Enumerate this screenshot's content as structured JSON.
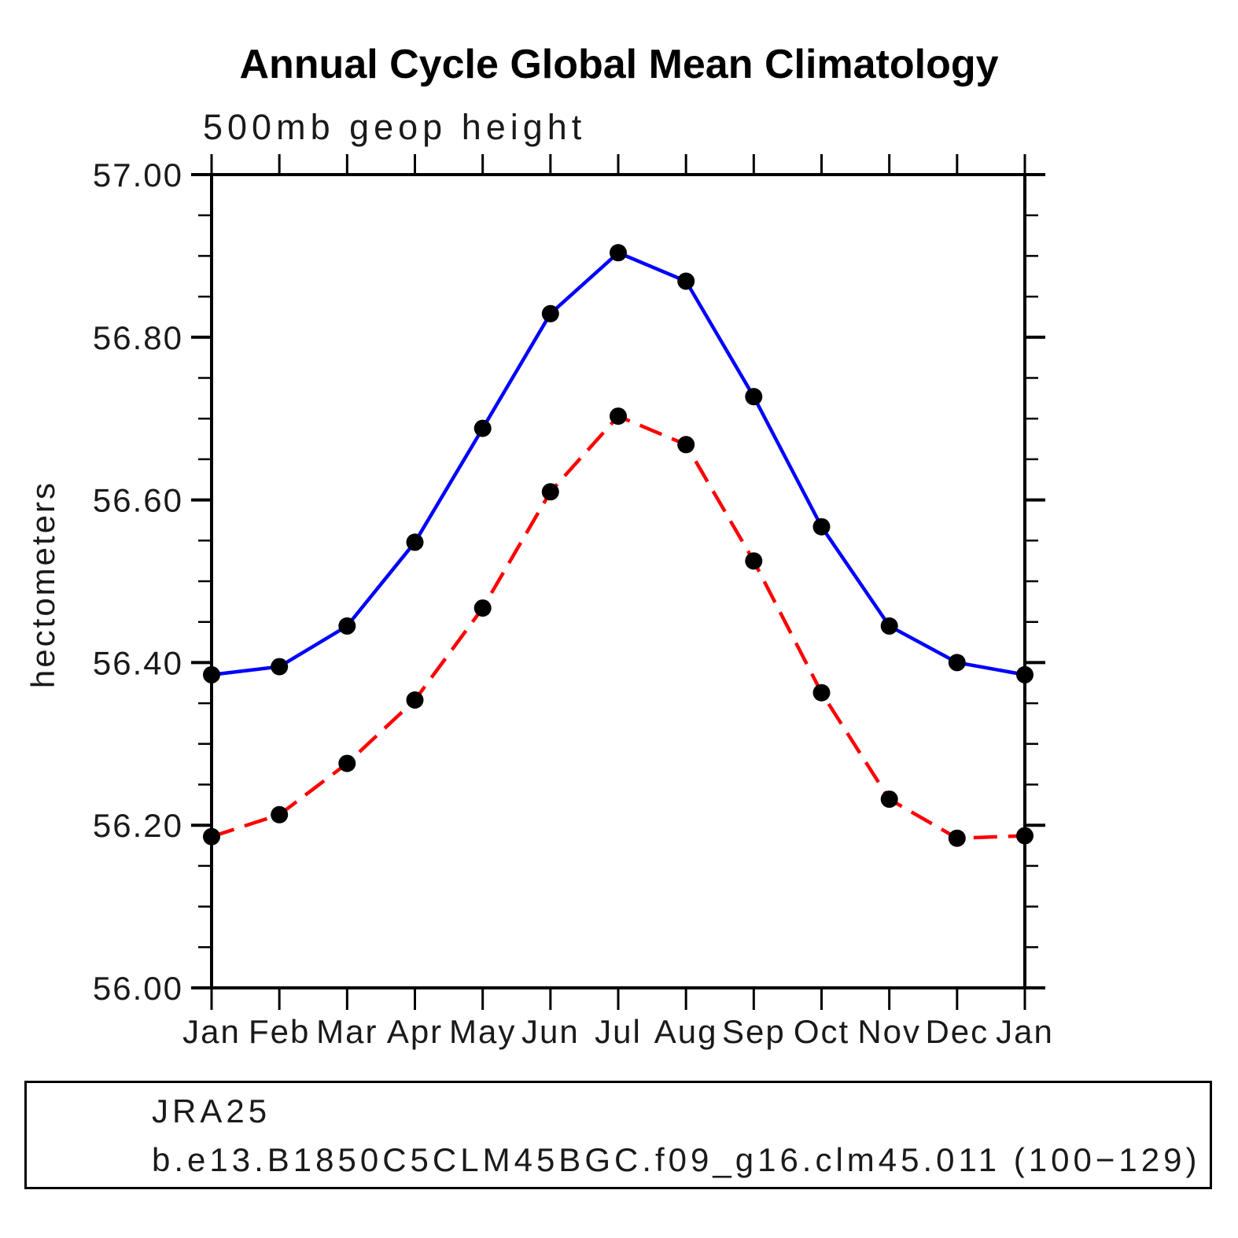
{
  "chart_data": {
    "type": "line",
    "title": "Annual Cycle Global Mean Climatology",
    "subtitle": "500mb geop height",
    "ylabel": "hectometers",
    "categories": [
      "Jan",
      "Feb",
      "Mar",
      "Apr",
      "May",
      "Jun",
      "Jul",
      "Aug",
      "Sep",
      "Oct",
      "Nov",
      "Dec",
      "Jan"
    ],
    "ylim": [
      56.0,
      57.0
    ],
    "ytick_labels": [
      "57.00",
      "56.80",
      "56.60",
      "56.40",
      "56.20",
      "56.00"
    ],
    "yticks_major": [
      57.0,
      56.8,
      56.6,
      56.4,
      56.2,
      56.0
    ],
    "ytick_minor_step": 0.05,
    "grid": false,
    "legend_position": "bottom",
    "axis_color": "#000000",
    "series": [
      {
        "name": "JRA25",
        "color": "#0000ff",
        "line_style": "solid",
        "marker": "circle",
        "marker_color": "#000000",
        "values": [
          56.385,
          56.395,
          56.445,
          56.548,
          56.688,
          56.829,
          56.904,
          56.869,
          56.727,
          56.567,
          56.445,
          56.4,
          56.385
        ]
      },
      {
        "name": "b.e13.B1850C5CLM45BGC.f09_g16.clm45.011 (100−129)",
        "color": "#ff0000",
        "line_style": "dashed",
        "marker": "circle",
        "marker_color": "#000000",
        "values": [
          56.186,
          56.213,
          56.276,
          56.354,
          56.467,
          56.61,
          56.703,
          56.668,
          56.525,
          56.363,
          56.232,
          56.184,
          56.187
        ]
      }
    ]
  }
}
